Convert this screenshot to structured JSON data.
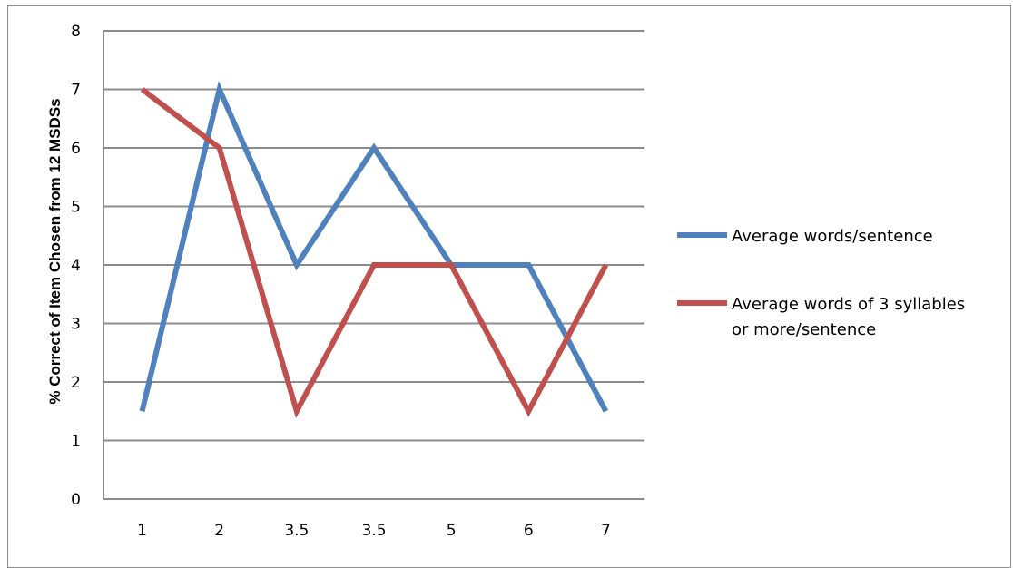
{
  "chart_data": {
    "type": "line",
    "categories": [
      "1",
      "2",
      "3.5",
      "3.5",
      "5",
      "6",
      "7"
    ],
    "series": [
      {
        "name": "Average words/sentence",
        "values": [
          1.5,
          7,
          4,
          6,
          4,
          4,
          1.5
        ],
        "color": "#4f81bd",
        "legend_lines": [
          "Average words/sentence"
        ]
      },
      {
        "name": "Average words of 3 syllables or more/sentence",
        "values": [
          7,
          6,
          1.5,
          4,
          4,
          1.5,
          4
        ],
        "color": "#c0504d",
        "legend_lines": [
          "Average words of 3 syllables",
          "or more/sentence"
        ]
      }
    ],
    "ylabel": "% Correct of Item Chosen from 12 MSDSs",
    "xlabel": "",
    "ylim": [
      0,
      8
    ],
    "yticks": [
      "0",
      "1",
      "2",
      "3",
      "4",
      "5",
      "6",
      "7",
      "8"
    ],
    "grid": true,
    "legend_position": "right"
  }
}
